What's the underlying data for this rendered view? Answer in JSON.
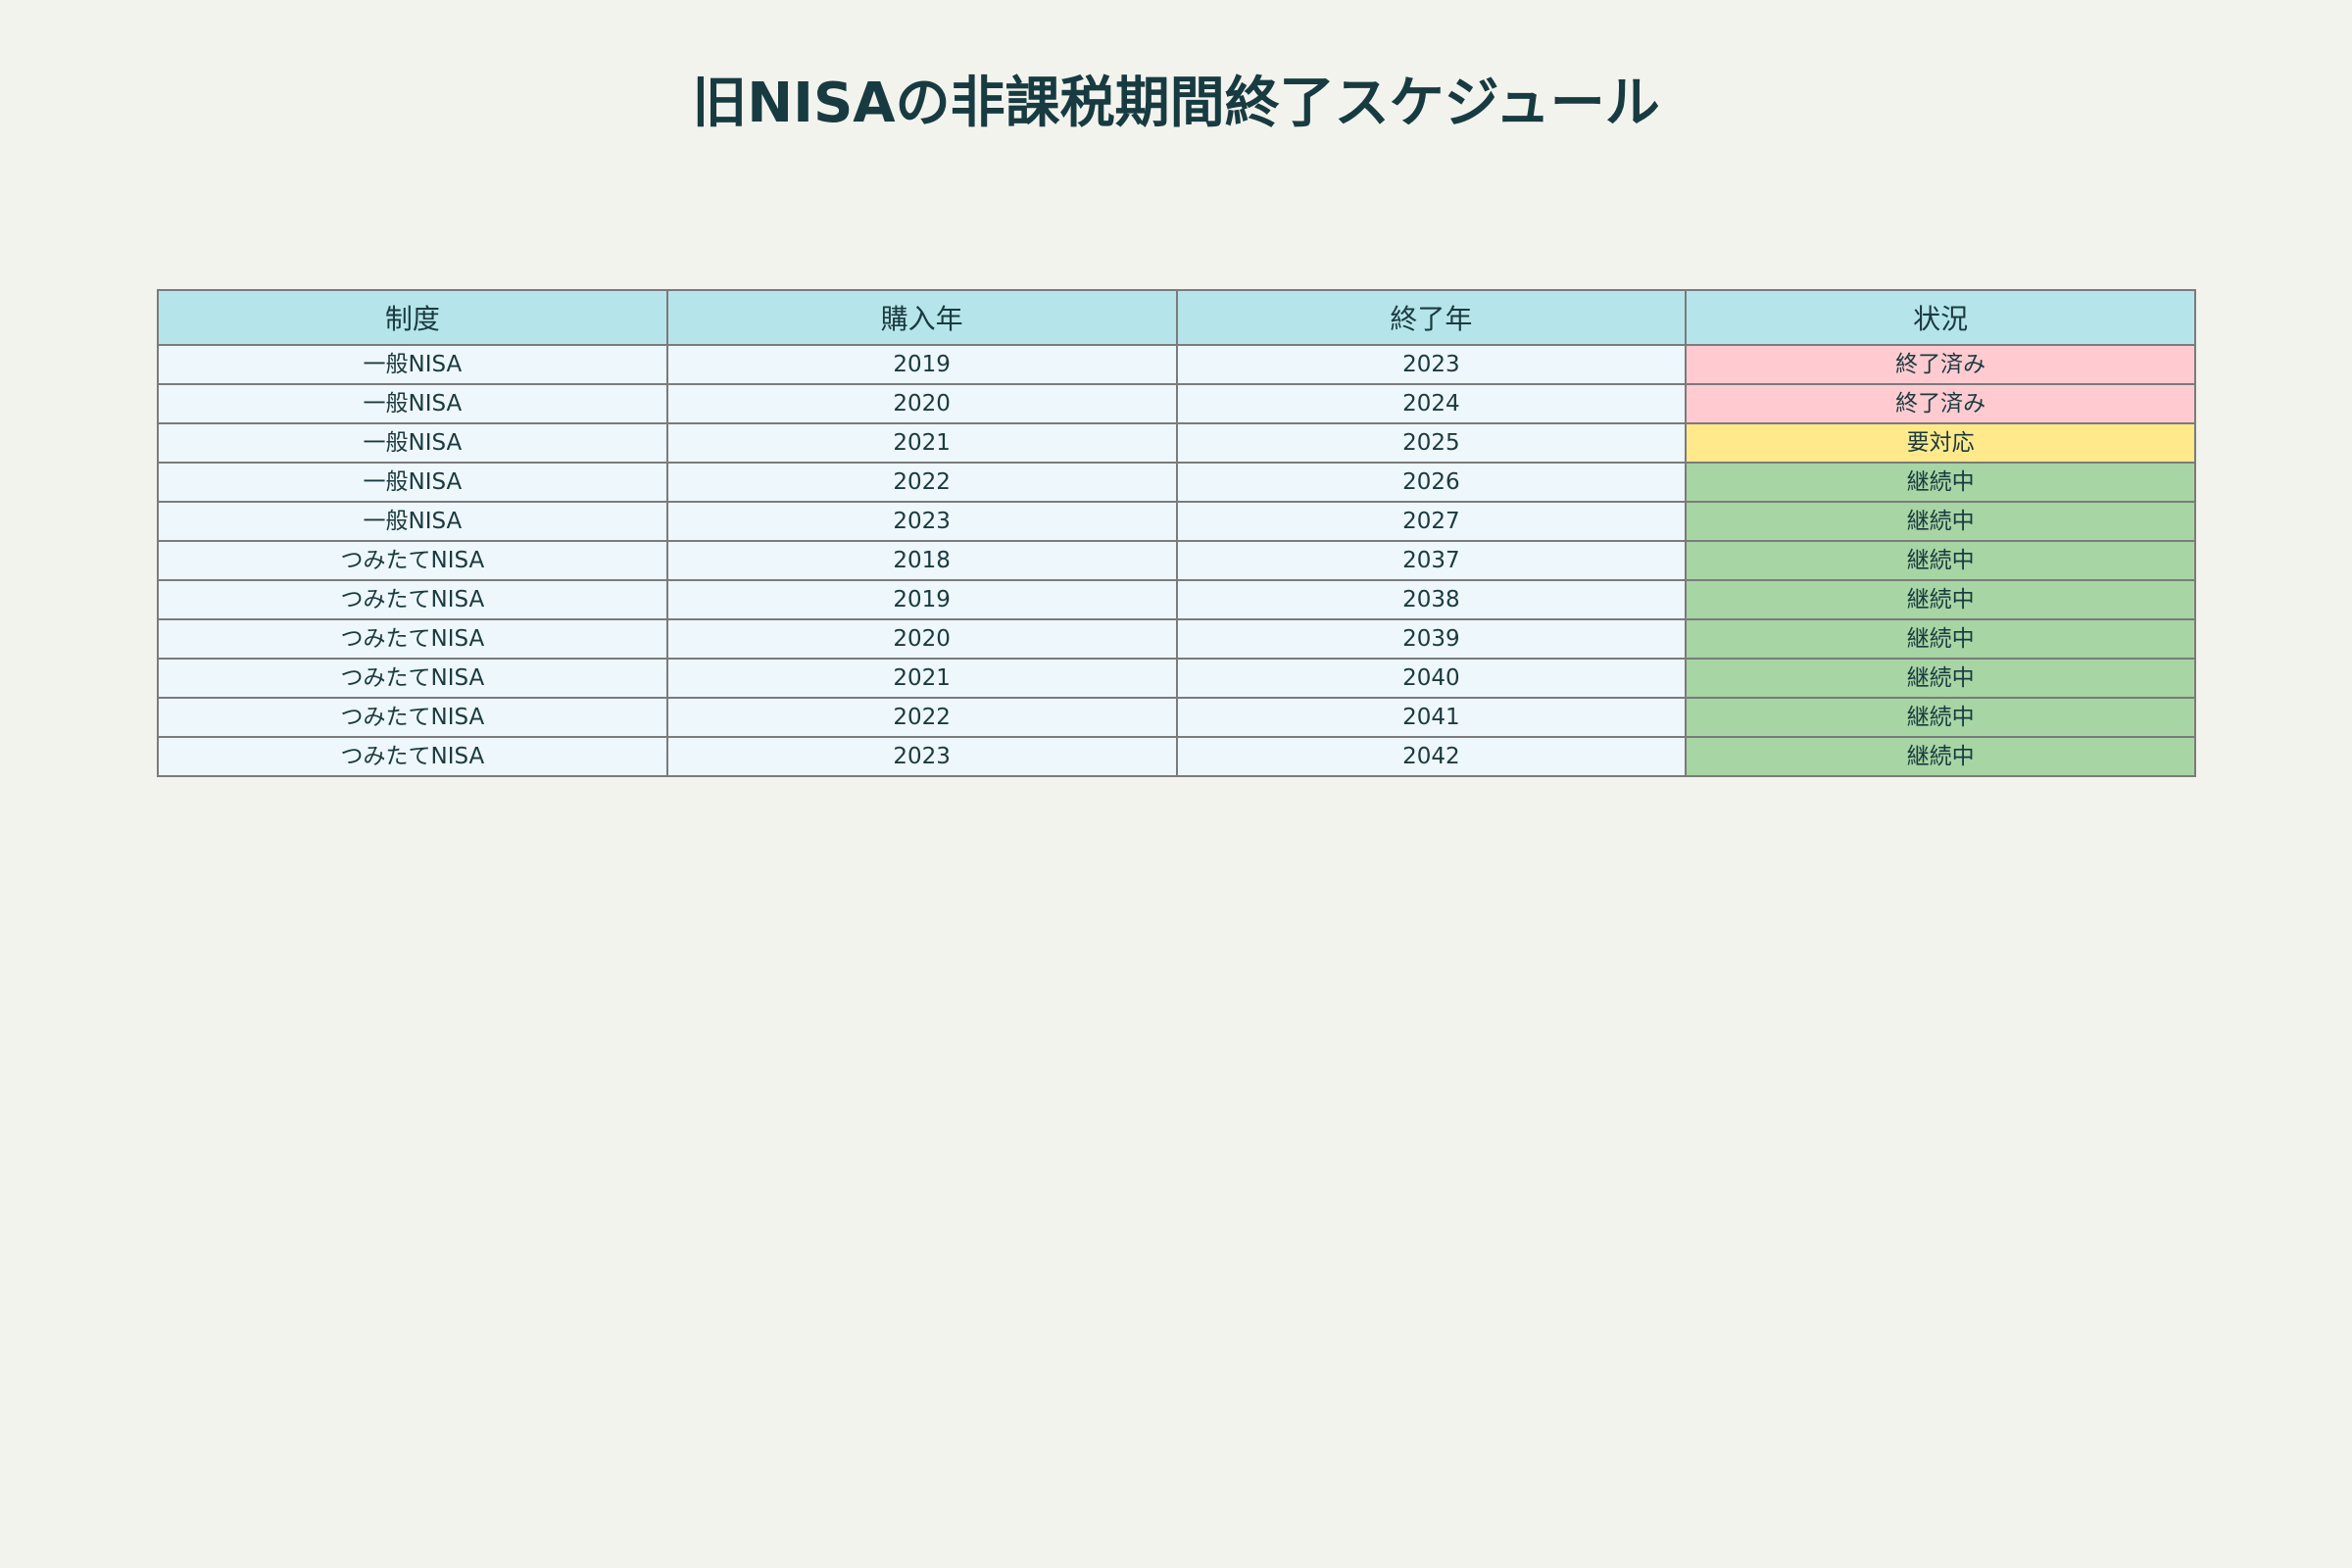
{
  "title": "旧NISAの非課税期間終了スケジュール",
  "chart_data": {
    "type": "table",
    "columns": [
      "制度",
      "購入年",
      "終了年",
      "状況"
    ],
    "rows": [
      [
        "一般NISA",
        "2019",
        "2023",
        "終了済み"
      ],
      [
        "一般NISA",
        "2020",
        "2024",
        "終了済み"
      ],
      [
        "一般NISA",
        "2021",
        "2025",
        "要対応"
      ],
      [
        "一般NISA",
        "2022",
        "2026",
        "継続中"
      ],
      [
        "一般NISA",
        "2023",
        "2027",
        "継続中"
      ],
      [
        "つみたてNISA",
        "2018",
        "2037",
        "継続中"
      ],
      [
        "つみたてNISA",
        "2019",
        "2038",
        "継続中"
      ],
      [
        "つみたてNISA",
        "2020",
        "2039",
        "継続中"
      ],
      [
        "つみたてNISA",
        "2021",
        "2040",
        "継続中"
      ],
      [
        "つみたてNISA",
        "2022",
        "2041",
        "継続中"
      ],
      [
        "つみたてNISA",
        "2023",
        "2042",
        "継続中"
      ]
    ],
    "status_colors": {
      "終了済み": "#ffcbd1",
      "要対応": "#ffe98a",
      "継続中": "#a7d5a4"
    },
    "header_color": "#b5e5ea",
    "cell_color": "#eef7fb"
  }
}
